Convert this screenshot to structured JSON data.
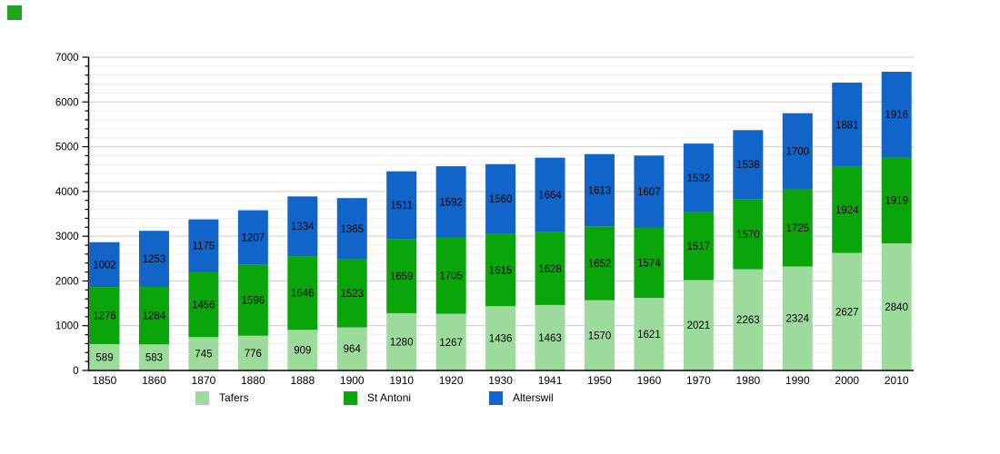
{
  "figure": {
    "corner_icon": {
      "color": "#1EA41E"
    }
  },
  "chart_data": {
    "type": "bar",
    "stacked": true,
    "title": "",
    "xlabel": "",
    "ylabel": "",
    "categories": [
      "1850",
      "1860",
      "1870",
      "1880",
      "1888",
      "1900",
      "1910",
      "1920",
      "1930",
      "1941",
      "1950",
      "1960",
      "1970",
      "1980",
      "1990",
      "2000",
      "2010"
    ],
    "series": [
      {
        "name": "Tafers",
        "color": "#9DDB9D",
        "values": [
          589,
          583,
          745,
          776,
          909,
          964,
          1280,
          1267,
          1436,
          1463,
          1570,
          1621,
          2021,
          2263,
          2324,
          2627,
          2840
        ]
      },
      {
        "name": "St Antoni",
        "color": "#0AA50A",
        "values": [
          1276,
          1284,
          1456,
          1596,
          1646,
          1523,
          1659,
          1705,
          1615,
          1628,
          1652,
          1574,
          1517,
          1570,
          1725,
          1924,
          1919
        ]
      },
      {
        "name": "Alterswil",
        "color": "#1164C8",
        "values": [
          1002,
          1253,
          1175,
          1207,
          1334,
          1365,
          1511,
          1592,
          1560,
          1664,
          1613,
          1607,
          1532,
          1538,
          1700,
          1881,
          1916
        ]
      }
    ],
    "ylim": [
      0,
      7000
    ],
    "y_major_step": 1000,
    "y_minor_step": 200,
    "y_tick_labels": [
      "0",
      "1000",
      "2000",
      "3000",
      "4000",
      "5000",
      "6000",
      "7000"
    ],
    "grid": true,
    "legend_position": "bottom",
    "value_labels_visible": true,
    "axis_color": "#000000",
    "major_grid_color": "#cccccc",
    "minor_grid_color": "#f0ebeb",
    "label_color": "#000000"
  }
}
